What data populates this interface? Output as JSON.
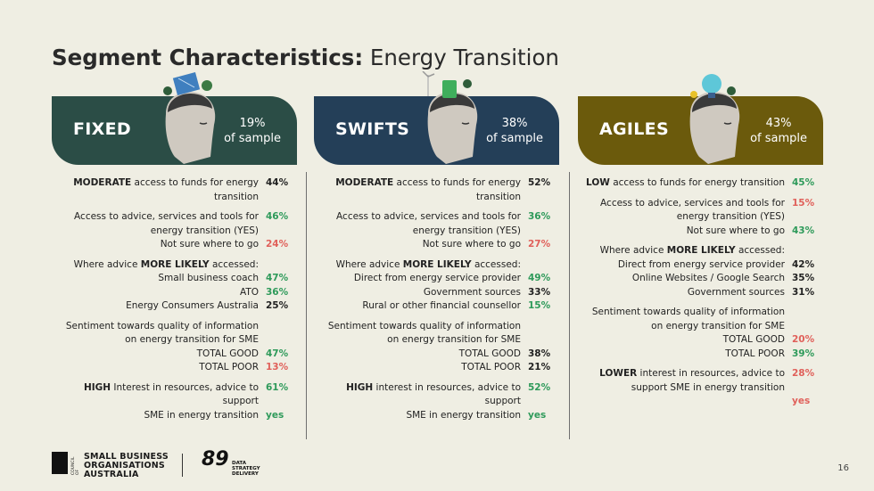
{
  "title": {
    "bold": "Segment Characteristics:",
    "light": " Energy Transition"
  },
  "colors": {
    "fixed": "#2b4d46",
    "swifts": "#243f58",
    "agiles": "#6b5a0c",
    "green": "#2e9a5a",
    "red": "#e0605a"
  },
  "segments": [
    {
      "name": "FIXED",
      "pct": "19%",
      "pct_label": "of sample",
      "blocks": [
        [
          {
            "label_bold": "MODERATE",
            "label": " access to funds for energy transition",
            "val": "44%",
            "color": "dark"
          }
        ],
        [
          {
            "label": "Access to advice, services and tools for energy transition (YES)",
            "val": "46%",
            "color": "green"
          },
          {
            "label": "Not sure where to go",
            "val": "24%",
            "color": "red"
          }
        ],
        [
          {
            "label": "Where advice ",
            "label_bold2": "MORE LIKELY",
            "label2": " accessed:",
            "val": "",
            "color": "dark"
          },
          {
            "label": "Small business coach",
            "val": "47%",
            "color": "green"
          },
          {
            "label": "ATO",
            "val": "36%",
            "color": "green"
          },
          {
            "label": "Energy Consumers Australia",
            "val": "25%",
            "color": "dark"
          }
        ],
        [
          {
            "label": "Sentiment towards quality of information on energy transition for SME",
            "val": "",
            "color": "dark"
          },
          {
            "label": "TOTAL GOOD",
            "val": "47%",
            "color": "green"
          },
          {
            "label": "TOTAL POOR",
            "val": "13%",
            "color": "red"
          }
        ],
        [
          {
            "label_bold": "HIGH",
            "label": " Interest in resources, advice to support",
            "val": "61%",
            "color": "green"
          },
          {
            "label": "SME in energy transition",
            "val": "yes",
            "color": "green"
          }
        ]
      ]
    },
    {
      "name": "SWIFTS",
      "pct": "38%",
      "pct_label": "of sample",
      "blocks": [
        [
          {
            "label_bold": "MODERATE",
            "label": " access to funds for energy transition",
            "val": "52%",
            "color": "dark"
          }
        ],
        [
          {
            "label": "Access to advice, services and tools for energy transition (YES)",
            "val": "36%",
            "color": "green"
          },
          {
            "label": "Not sure where to go",
            "val": "27%",
            "color": "red"
          }
        ],
        [
          {
            "label": "Where advice ",
            "label_bold2": "MORE LIKELY",
            "label2": " accessed:",
            "val": "",
            "color": "dark"
          },
          {
            "label": "Direct from energy service provider",
            "val": "49%",
            "color": "green"
          },
          {
            "label": "Government sources",
            "val": "33%",
            "color": "dark"
          },
          {
            "label": "Rural or other financial counsellor",
            "val": "15%",
            "color": "green"
          }
        ],
        [
          {
            "label": "Sentiment towards quality of information on energy transition for SME",
            "val": "",
            "color": "dark"
          },
          {
            "label": "TOTAL GOOD",
            "val": "38%",
            "color": "dark"
          },
          {
            "label": "TOTAL POOR",
            "val": "21%",
            "color": "dark"
          }
        ],
        [
          {
            "label_bold": "HIGH",
            "label": " interest in resources, advice to support",
            "val": "52%",
            "color": "green"
          },
          {
            "label": "SME in energy transition",
            "val": "yes",
            "color": "green"
          }
        ]
      ]
    },
    {
      "name": "AGILES",
      "pct": "43%",
      "pct_label": "of sample",
      "blocks": [
        [
          {
            "label_bold": "LOW",
            "label": " access to funds for energy transition",
            "val": "45%",
            "color": "green"
          }
        ],
        [
          {
            "label": "Access to advice, services and tools for energy transition (YES)",
            "val": "15%",
            "color": "red"
          },
          {
            "label": "Not sure where to go",
            "val": "43%",
            "color": "green"
          }
        ],
        [
          {
            "label": "Where advice ",
            "label_bold2": "MORE LIKELY",
            "label2": " accessed:",
            "val": "",
            "color": "dark"
          },
          {
            "label": "Direct from energy service provider",
            "val": "42%",
            "color": "dark"
          },
          {
            "label": "Online Websites / Google Search",
            "val": "35%",
            "color": "dark"
          },
          {
            "label": "Government sources",
            "val": "31%",
            "color": "dark"
          }
        ],
        [
          {
            "label": "Sentiment towards quality of information on energy transition for SME",
            "val": "",
            "color": "dark"
          },
          {
            "label": "TOTAL GOOD",
            "val": "20%",
            "color": "red"
          },
          {
            "label": "TOTAL POOR",
            "val": "39%",
            "color": "green"
          }
        ],
        [
          {
            "label_bold": "LOWER",
            "label": " interest in resources, advice to support SME in energy transition",
            "val": "28%",
            "color": "red"
          },
          {
            "label": "",
            "val": "yes",
            "color": "red"
          }
        ]
      ]
    }
  ],
  "footer": {
    "org_line1": "SMALL BUSINESS",
    "org_line2": "ORGANISATIONS",
    "org_line3": "AUSTRALIA",
    "council_text": "COUNCIL OF",
    "logo89": "89",
    "logo89_sub1": "DATA",
    "logo89_sub2": "STRATEGY",
    "logo89_sub3": "DELIVERY",
    "page": "16"
  }
}
